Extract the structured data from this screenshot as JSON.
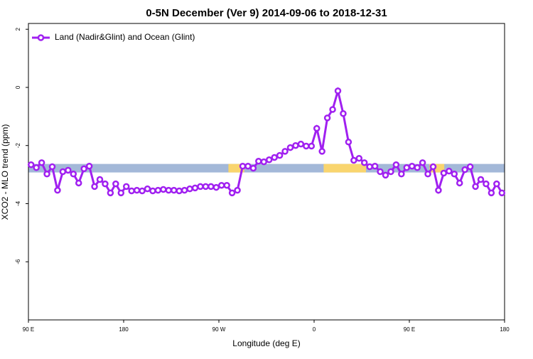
{
  "chart_data": {
    "type": "line",
    "title": "0-5N December (Ver 9)   2014-09-06 to 2018-12-31",
    "x_label": "Longitude (deg E)",
    "y_label": "XCO2 - MLO trend (ppm)",
    "x": [
      92.5,
      97.5,
      102.5,
      107.5,
      112.5,
      117.5,
      122.5,
      127.5,
      132.5,
      137.5,
      142.5,
      147.5,
      152.5,
      157.5,
      162.5,
      167.5,
      172.5,
      177.5,
      182.5,
      187.5,
      192.5,
      197.5,
      202.5,
      207.5,
      212.5,
      217.5,
      222.5,
      227.5,
      232.5,
      237.5,
      242.5,
      247.5,
      252.5,
      257.5,
      262.5,
      267.5,
      272.5,
      277.5,
      282.5,
      287.5,
      292.5,
      297.5,
      302.5,
      307.5,
      312.5,
      317.5,
      322.5,
      327.5,
      332.5,
      337.5,
      342.5,
      347.5,
      352.5,
      357.5,
      362.5,
      367.5,
      372.5,
      377.5,
      382.5,
      387.5,
      392.5,
      397.5,
      402.5,
      407.5,
      412.5,
      417.5,
      422.5,
      427.5,
      432.5,
      437.5,
      442.5,
      447.5,
      452.5,
      457.5,
      462.5,
      467.5,
      472.5,
      477.5,
      482.5,
      487.5,
      492.5,
      497.5,
      502.5,
      507.5,
      512.5,
      517.5,
      522.5,
      527.5,
      532.5,
      537.5
    ],
    "series": [
      {
        "name": "Land (Nadir&Glint) and Ocean (Glint)",
        "color": "#a020f0",
        "values": [
          -2.66,
          -2.76,
          -2.59,
          -2.98,
          -2.73,
          -3.54,
          -2.9,
          -2.85,
          -2.98,
          -3.29,
          -2.8,
          -2.71,
          -3.41,
          -3.17,
          -3.32,
          -3.63,
          -3.32,
          -3.63,
          -3.41,
          -3.56,
          -3.54,
          -3.56,
          -3.49,
          -3.56,
          -3.54,
          -3.51,
          -3.54,
          -3.54,
          -3.56,
          -3.54,
          -3.49,
          -3.46,
          -3.41,
          -3.41,
          -3.41,
          -3.44,
          -3.37,
          -3.37,
          -3.63,
          -3.54,
          -2.71,
          -2.71,
          -2.78,
          -2.54,
          -2.56,
          -2.49,
          -2.41,
          -2.34,
          -2.2,
          -2.07,
          -2.0,
          -1.95,
          -2.02,
          -2.02,
          -1.41,
          -2.2,
          -1.05,
          -0.76,
          -0.12,
          -0.9,
          -1.88,
          -2.51,
          -2.44,
          -2.59,
          -2.73,
          -2.71,
          -2.9,
          -3.02,
          -2.9,
          -2.66,
          -2.98,
          -2.76,
          -2.71,
          -2.76,
          -2.59,
          -2.98,
          -2.73,
          -3.54,
          -2.95,
          -2.88,
          -2.98,
          -3.29,
          -2.83,
          -2.73,
          -3.41,
          -3.17,
          -3.32,
          -3.63,
          -3.32,
          -3.63
        ]
      }
    ],
    "xlim": [
      90,
      540
    ],
    "ylim": [
      -8,
      2.2
    ],
    "xticks": [
      {
        "value": 90,
        "label": "90 E"
      },
      180,
      {
        "value": 270,
        "label": "90 W"
      },
      {
        "value": 360,
        "label": "0"
      },
      {
        "value": 450,
        "label": "90 E"
      },
      {
        "value": 540,
        "label": "180"
      }
    ],
    "yticks": [
      2,
      0,
      -2,
      -4,
      -6
    ],
    "legend": "top-left",
    "band": {
      "y": -2.78,
      "color": "#a3b8d8",
      "land_color": "#f9d56e",
      "land_ranges": [
        [
          279,
          294
        ],
        [
          369,
          409
        ],
        [
          469,
          483
        ]
      ]
    }
  }
}
